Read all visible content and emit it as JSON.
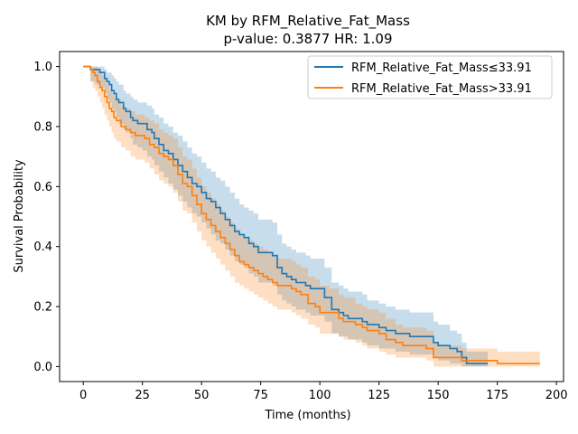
{
  "chart_data": {
    "type": "line",
    "title": "KM by RFM_Relative_Fat_Mass",
    "subtitle": "p-value: 0.3877  HR: 1.09",
    "xlabel": "Time (months)",
    "ylabel": "Survival Probability",
    "xlim": [
      -10,
      203
    ],
    "ylim": [
      -0.05,
      1.05
    ],
    "xticks": [
      0,
      25,
      50,
      75,
      100,
      125,
      150,
      175,
      200
    ],
    "yticks": [
      0.0,
      0.2,
      0.4,
      0.6,
      0.8,
      1.0
    ],
    "grid": false,
    "legend_position": "upper-right",
    "series": [
      {
        "name": "RFM_Relative_Fat_Mass≤33.91",
        "color": "#1f77b4",
        "band_color": "#1f77b4",
        "x": [
          0,
          3,
          5,
          7,
          9,
          10,
          11,
          12,
          13,
          14,
          15,
          17,
          18,
          20,
          21,
          23,
          25,
          27,
          29,
          30,
          32,
          34,
          36,
          38,
          40,
          42,
          44,
          46,
          48,
          50,
          52,
          54,
          56,
          58,
          60,
          62,
          64,
          66,
          68,
          70,
          72,
          74,
          76,
          78,
          80,
          82,
          84,
          86,
          88,
          90,
          92,
          94,
          96,
          98,
          100,
          102,
          105,
          108,
          110,
          112,
          115,
          118,
          120,
          122,
          125,
          128,
          130,
          132,
          135,
          138,
          140,
          142,
          145,
          148,
          150,
          152,
          155,
          158,
          160,
          162,
          165,
          168,
          171
        ],
        "y": [
          1.0,
          0.99,
          0.99,
          0.98,
          0.96,
          0.95,
          0.94,
          0.92,
          0.91,
          0.89,
          0.88,
          0.86,
          0.85,
          0.83,
          0.82,
          0.81,
          0.81,
          0.79,
          0.78,
          0.76,
          0.74,
          0.72,
          0.71,
          0.69,
          0.67,
          0.65,
          0.63,
          0.61,
          0.6,
          0.58,
          0.56,
          0.55,
          0.53,
          0.51,
          0.49,
          0.47,
          0.45,
          0.44,
          0.43,
          0.41,
          0.4,
          0.38,
          0.38,
          0.38,
          0.37,
          0.33,
          0.31,
          0.3,
          0.29,
          0.28,
          0.28,
          0.27,
          0.26,
          0.26,
          0.26,
          0.23,
          0.19,
          0.18,
          0.17,
          0.16,
          0.16,
          0.15,
          0.14,
          0.14,
          0.13,
          0.12,
          0.12,
          0.11,
          0.11,
          0.1,
          0.1,
          0.1,
          0.1,
          0.08,
          0.07,
          0.07,
          0.06,
          0.05,
          0.03,
          0.01,
          0.01,
          0.01,
          0.01
        ],
        "ci_lower": [
          1.0,
          0.95,
          0.94,
          0.93,
          0.91,
          0.89,
          0.88,
          0.86,
          0.85,
          0.83,
          0.81,
          0.79,
          0.78,
          0.76,
          0.74,
          0.73,
          0.72,
          0.7,
          0.69,
          0.67,
          0.65,
          0.63,
          0.61,
          0.59,
          0.57,
          0.55,
          0.53,
          0.51,
          0.5,
          0.48,
          0.46,
          0.44,
          0.42,
          0.41,
          0.39,
          0.37,
          0.35,
          0.34,
          0.33,
          0.31,
          0.3,
          0.28,
          0.28,
          0.28,
          0.27,
          0.24,
          0.22,
          0.21,
          0.2,
          0.19,
          0.19,
          0.18,
          0.17,
          0.17,
          0.17,
          0.15,
          0.11,
          0.1,
          0.1,
          0.09,
          0.09,
          0.08,
          0.07,
          0.07,
          0.06,
          0.06,
          0.06,
          0.05,
          0.05,
          0.04,
          0.04,
          0.04,
          0.04,
          0.03,
          0.02,
          0.02,
          0.01,
          0.01,
          0.0,
          0.0,
          0.0,
          0.0,
          0.0
        ],
        "ci_upper": [
          1.0,
          1.0,
          1.0,
          1.0,
          0.99,
          0.98,
          0.98,
          0.97,
          0.96,
          0.95,
          0.94,
          0.92,
          0.91,
          0.9,
          0.89,
          0.88,
          0.88,
          0.87,
          0.86,
          0.84,
          0.83,
          0.81,
          0.8,
          0.78,
          0.77,
          0.75,
          0.73,
          0.71,
          0.7,
          0.68,
          0.66,
          0.65,
          0.63,
          0.62,
          0.6,
          0.58,
          0.56,
          0.54,
          0.53,
          0.52,
          0.51,
          0.49,
          0.49,
          0.49,
          0.48,
          0.44,
          0.41,
          0.4,
          0.39,
          0.38,
          0.38,
          0.37,
          0.36,
          0.36,
          0.36,
          0.33,
          0.28,
          0.27,
          0.26,
          0.25,
          0.25,
          0.24,
          0.22,
          0.22,
          0.21,
          0.2,
          0.2,
          0.19,
          0.19,
          0.18,
          0.18,
          0.18,
          0.18,
          0.15,
          0.14,
          0.14,
          0.12,
          0.11,
          0.08,
          0.05,
          0.05,
          0.05,
          0.05
        ]
      },
      {
        "name": "RFM_Relative_Fat_Mass>33.91",
        "color": "#ff7f0e",
        "band_color": "#ff7f0e",
        "x": [
          0,
          3,
          4,
          5,
          6,
          7,
          8,
          9,
          10,
          11,
          12,
          13,
          14,
          16,
          18,
          20,
          22,
          24,
          26,
          28,
          30,
          32,
          34,
          36,
          38,
          40,
          42,
          44,
          46,
          48,
          50,
          52,
          54,
          56,
          58,
          60,
          62,
          64,
          66,
          68,
          70,
          72,
          74,
          76,
          78,
          80,
          82,
          84,
          86,
          88,
          90,
          92,
          95,
          98,
          100,
          104,
          108,
          110,
          112,
          115,
          118,
          120,
          125,
          128,
          132,
          135,
          140,
          145,
          148,
          150,
          155,
          160,
          165,
          170,
          175,
          180,
          185,
          190,
          193
        ],
        "y": [
          1.0,
          0.99,
          0.98,
          0.97,
          0.95,
          0.93,
          0.92,
          0.9,
          0.88,
          0.86,
          0.85,
          0.83,
          0.82,
          0.8,
          0.79,
          0.78,
          0.77,
          0.77,
          0.76,
          0.74,
          0.73,
          0.71,
          0.7,
          0.69,
          0.67,
          0.64,
          0.61,
          0.6,
          0.57,
          0.54,
          0.51,
          0.49,
          0.47,
          0.45,
          0.43,
          0.41,
          0.39,
          0.37,
          0.35,
          0.34,
          0.33,
          0.32,
          0.31,
          0.3,
          0.29,
          0.28,
          0.27,
          0.27,
          0.27,
          0.26,
          0.25,
          0.24,
          0.21,
          0.2,
          0.18,
          0.18,
          0.16,
          0.15,
          0.15,
          0.14,
          0.13,
          0.12,
          0.11,
          0.09,
          0.08,
          0.07,
          0.07,
          0.06,
          0.03,
          0.03,
          0.03,
          0.02,
          0.02,
          0.02,
          0.01,
          0.01,
          0.01,
          0.01,
          0.01
        ],
        "ci_lower": [
          1.0,
          0.95,
          0.93,
          0.92,
          0.9,
          0.88,
          0.86,
          0.84,
          0.82,
          0.8,
          0.78,
          0.76,
          0.75,
          0.73,
          0.72,
          0.7,
          0.69,
          0.69,
          0.68,
          0.66,
          0.64,
          0.62,
          0.61,
          0.6,
          0.58,
          0.55,
          0.52,
          0.51,
          0.48,
          0.45,
          0.42,
          0.4,
          0.38,
          0.36,
          0.34,
          0.32,
          0.3,
          0.28,
          0.27,
          0.26,
          0.25,
          0.24,
          0.23,
          0.22,
          0.21,
          0.2,
          0.19,
          0.19,
          0.19,
          0.18,
          0.17,
          0.16,
          0.14,
          0.13,
          0.11,
          0.11,
          0.1,
          0.09,
          0.09,
          0.08,
          0.07,
          0.06,
          0.05,
          0.04,
          0.03,
          0.03,
          0.03,
          0.02,
          0.0,
          0.0,
          0.0,
          0.0,
          0.0,
          0.0,
          0.0,
          0.0,
          0.0,
          0.0,
          0.0
        ],
        "ci_upper": [
          1.0,
          1.0,
          1.0,
          1.0,
          0.99,
          0.98,
          0.97,
          0.96,
          0.94,
          0.92,
          0.91,
          0.9,
          0.89,
          0.87,
          0.86,
          0.85,
          0.84,
          0.84,
          0.83,
          0.82,
          0.81,
          0.79,
          0.78,
          0.77,
          0.76,
          0.73,
          0.7,
          0.69,
          0.66,
          0.63,
          0.6,
          0.58,
          0.56,
          0.54,
          0.52,
          0.5,
          0.48,
          0.46,
          0.44,
          0.43,
          0.42,
          0.41,
          0.4,
          0.39,
          0.38,
          0.37,
          0.36,
          0.36,
          0.36,
          0.35,
          0.34,
          0.33,
          0.3,
          0.29,
          0.27,
          0.26,
          0.24,
          0.23,
          0.23,
          0.21,
          0.2,
          0.19,
          0.18,
          0.16,
          0.14,
          0.13,
          0.13,
          0.12,
          0.08,
          0.07,
          0.07,
          0.06,
          0.06,
          0.06,
          0.05,
          0.05,
          0.05,
          0.05,
          0.05
        ]
      }
    ]
  }
}
